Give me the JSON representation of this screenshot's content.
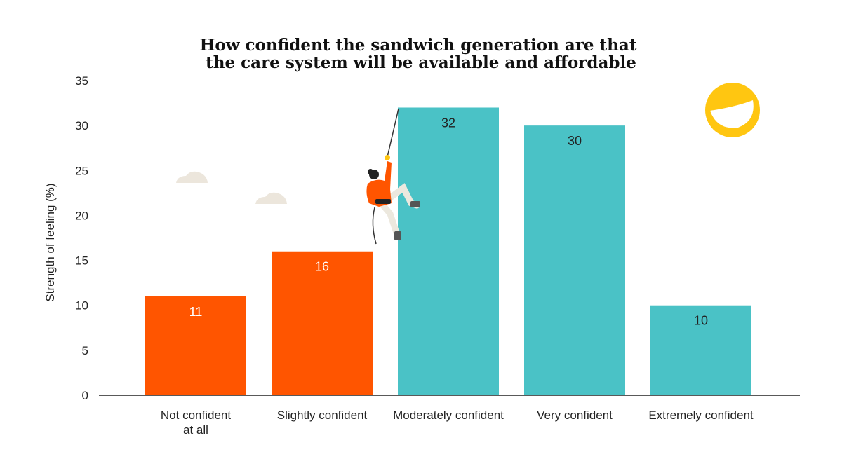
{
  "chart_data": {
    "type": "bar",
    "title": [
      "How confident the sandwich generation are that",
      "the care system will be available and affordable"
    ],
    "xlabel": "",
    "ylabel": "Strength of feeling (%)",
    "ylim": [
      0,
      35
    ],
    "yticks": [
      0,
      5,
      10,
      15,
      20,
      25,
      30,
      35
    ],
    "grid": false,
    "categories": [
      [
        "Not confident",
        "at all"
      ],
      [
        "Slightly confident"
      ],
      [
        "Moderately confident"
      ],
      [
        "Very confident"
      ],
      [
        "Extremely confident"
      ]
    ],
    "values": [
      11,
      16,
      32,
      30,
      10
    ],
    "colors": [
      "#ff5500",
      "#ff5500",
      "#4ac2c6",
      "#4ac2c6",
      "#4ac2c6"
    ],
    "label_colors": [
      "#ffffff",
      "#ffffff",
      "#222222",
      "#222222",
      "#222222"
    ]
  },
  "decorations": {
    "cloud_color": "#ece6dc",
    "smiley_color": "#ffc611",
    "climber_icon": "rock-climber-illustration"
  }
}
